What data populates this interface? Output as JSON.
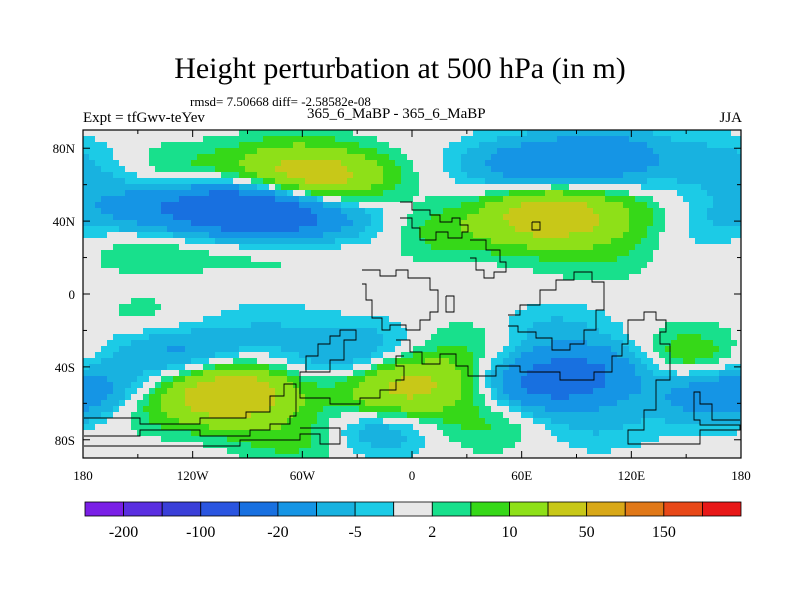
{
  "chart_data": {
    "type": "heatmap",
    "title": "Height perturbation at 500 hPa (in m)",
    "stats_line": "rmsd= 7.50668 diff= -2.58582e-08",
    "left_label": "Expt = tfGwv-teYev",
    "center_label": "365_6_MaBP - 365_6_MaBP",
    "right_label": "JJA",
    "x_range": [
      -180,
      180
    ],
    "y_range": [
      -90,
      90
    ],
    "x_ticks": [
      {
        "value": -180,
        "label": "180"
      },
      {
        "value": -120,
        "label": "120W"
      },
      {
        "value": -60,
        "label": "60W"
      },
      {
        "value": 0,
        "label": "0"
      },
      {
        "value": 60,
        "label": "60E"
      },
      {
        "value": 120,
        "label": "120E"
      },
      {
        "value": 180,
        "label": "180"
      }
    ],
    "y_ticks": [
      {
        "value": 80,
        "label": "80N"
      },
      {
        "value": 40,
        "label": "40N"
      },
      {
        "value": 0,
        "label": "0"
      },
      {
        "value": -40,
        "label": "40S"
      },
      {
        "value": -80,
        "label": "80S"
      }
    ],
    "contour_levels": [
      -200,
      -150,
      -100,
      -50,
      -20,
      -10,
      -5,
      -2,
      2,
      5,
      10,
      20,
      50,
      100,
      150,
      200
    ],
    "colorbar_labels": [
      {
        "level": -200,
        "label": "-200"
      },
      {
        "level": -100,
        "label": "-100"
      },
      {
        "level": -20,
        "label": "-20"
      },
      {
        "level": -5,
        "label": "-5"
      },
      {
        "level": 2,
        "label": "2"
      },
      {
        "level": 10,
        "label": "10"
      },
      {
        "level": 50,
        "label": "50"
      },
      {
        "level": 150,
        "label": "150"
      }
    ],
    "colors": [
      "#7a1fe6",
      "#5a2ee0",
      "#3a3fd8",
      "#2a55e0",
      "#1870e0",
      "#1595e5",
      "#18b2e0",
      "#1ccbe6",
      "#e8e8e8",
      "#18e08c",
      "#36d818",
      "#8ee018",
      "#c8c818",
      "#d8a818",
      "#e07818",
      "#e84818",
      "#e81818"
    ],
    "features": [
      {
        "lon": -130,
        "lat": 65,
        "value": 8
      },
      {
        "lon": -70,
        "lat": 68,
        "value": 15
      },
      {
        "lon": -45,
        "lat": 63,
        "value": 20
      },
      {
        "lon": -165,
        "lat": 60,
        "value": -4
      },
      {
        "lon": -150,
        "lat": 45,
        "value": -10
      },
      {
        "lon": -110,
        "lat": 47,
        "value": -25
      },
      {
        "lon": -75,
        "lat": 44,
        "value": -30
      },
      {
        "lon": -40,
        "lat": 42,
        "value": -8
      },
      {
        "lon": -150,
        "lat": 28,
        "value": 6
      },
      {
        "lon": -105,
        "lat": 30,
        "value": 5
      },
      {
        "lon": -65,
        "lat": 28,
        "value": 5
      },
      {
        "lon": 20,
        "lat": 34,
        "value": 7
      },
      {
        "lon": 60,
        "lat": 70,
        "value": -14
      },
      {
        "lon": 105,
        "lat": 75,
        "value": -16
      },
      {
        "lon": 165,
        "lat": 72,
        "value": -6
      },
      {
        "lon": 75,
        "lat": 43,
        "value": 30
      },
      {
        "lon": 120,
        "lat": 42,
        "value": 6
      },
      {
        "lon": 160,
        "lat": 38,
        "value": -5
      },
      {
        "lon": 100,
        "lat": 20,
        "value": 4
      },
      {
        "lon": -145,
        "lat": -15,
        "value": 4
      },
      {
        "lon": -165,
        "lat": -30,
        "value": -3
      },
      {
        "lon": -125,
        "lat": -33,
        "value": -12
      },
      {
        "lon": -80,
        "lat": -18,
        "value": -4
      },
      {
        "lon": -40,
        "lat": -35,
        "value": -8
      },
      {
        "lon": -10,
        "lat": -28,
        "value": -5
      },
      {
        "lon": -10,
        "lat": -55,
        "value": 18
      },
      {
        "lon": 10,
        "lat": -45,
        "value": 12
      },
      {
        "lon": 30,
        "lat": -25,
        "value": 5
      },
      {
        "lon": 75,
        "lat": -20,
        "value": -6
      },
      {
        "lon": 75,
        "lat": -48,
        "value": -25
      },
      {
        "lon": 110,
        "lat": -40,
        "value": -12
      },
      {
        "lon": 150,
        "lat": -35,
        "value": 12
      },
      {
        "lon": 165,
        "lat": -55,
        "value": -14
      },
      {
        "lon": -100,
        "lat": -55,
        "value": 35
      },
      {
        "lon": -150,
        "lat": -62,
        "value": 6
      },
      {
        "lon": -170,
        "lat": -55,
        "value": -8
      },
      {
        "lon": -20,
        "lat": -73,
        "value": -12
      },
      {
        "lon": 40,
        "lat": -72,
        "value": 6
      },
      {
        "lon": 100,
        "lat": -72,
        "value": -5
      },
      {
        "lon": -60,
        "lat": -78,
        "value": 8
      }
    ]
  }
}
